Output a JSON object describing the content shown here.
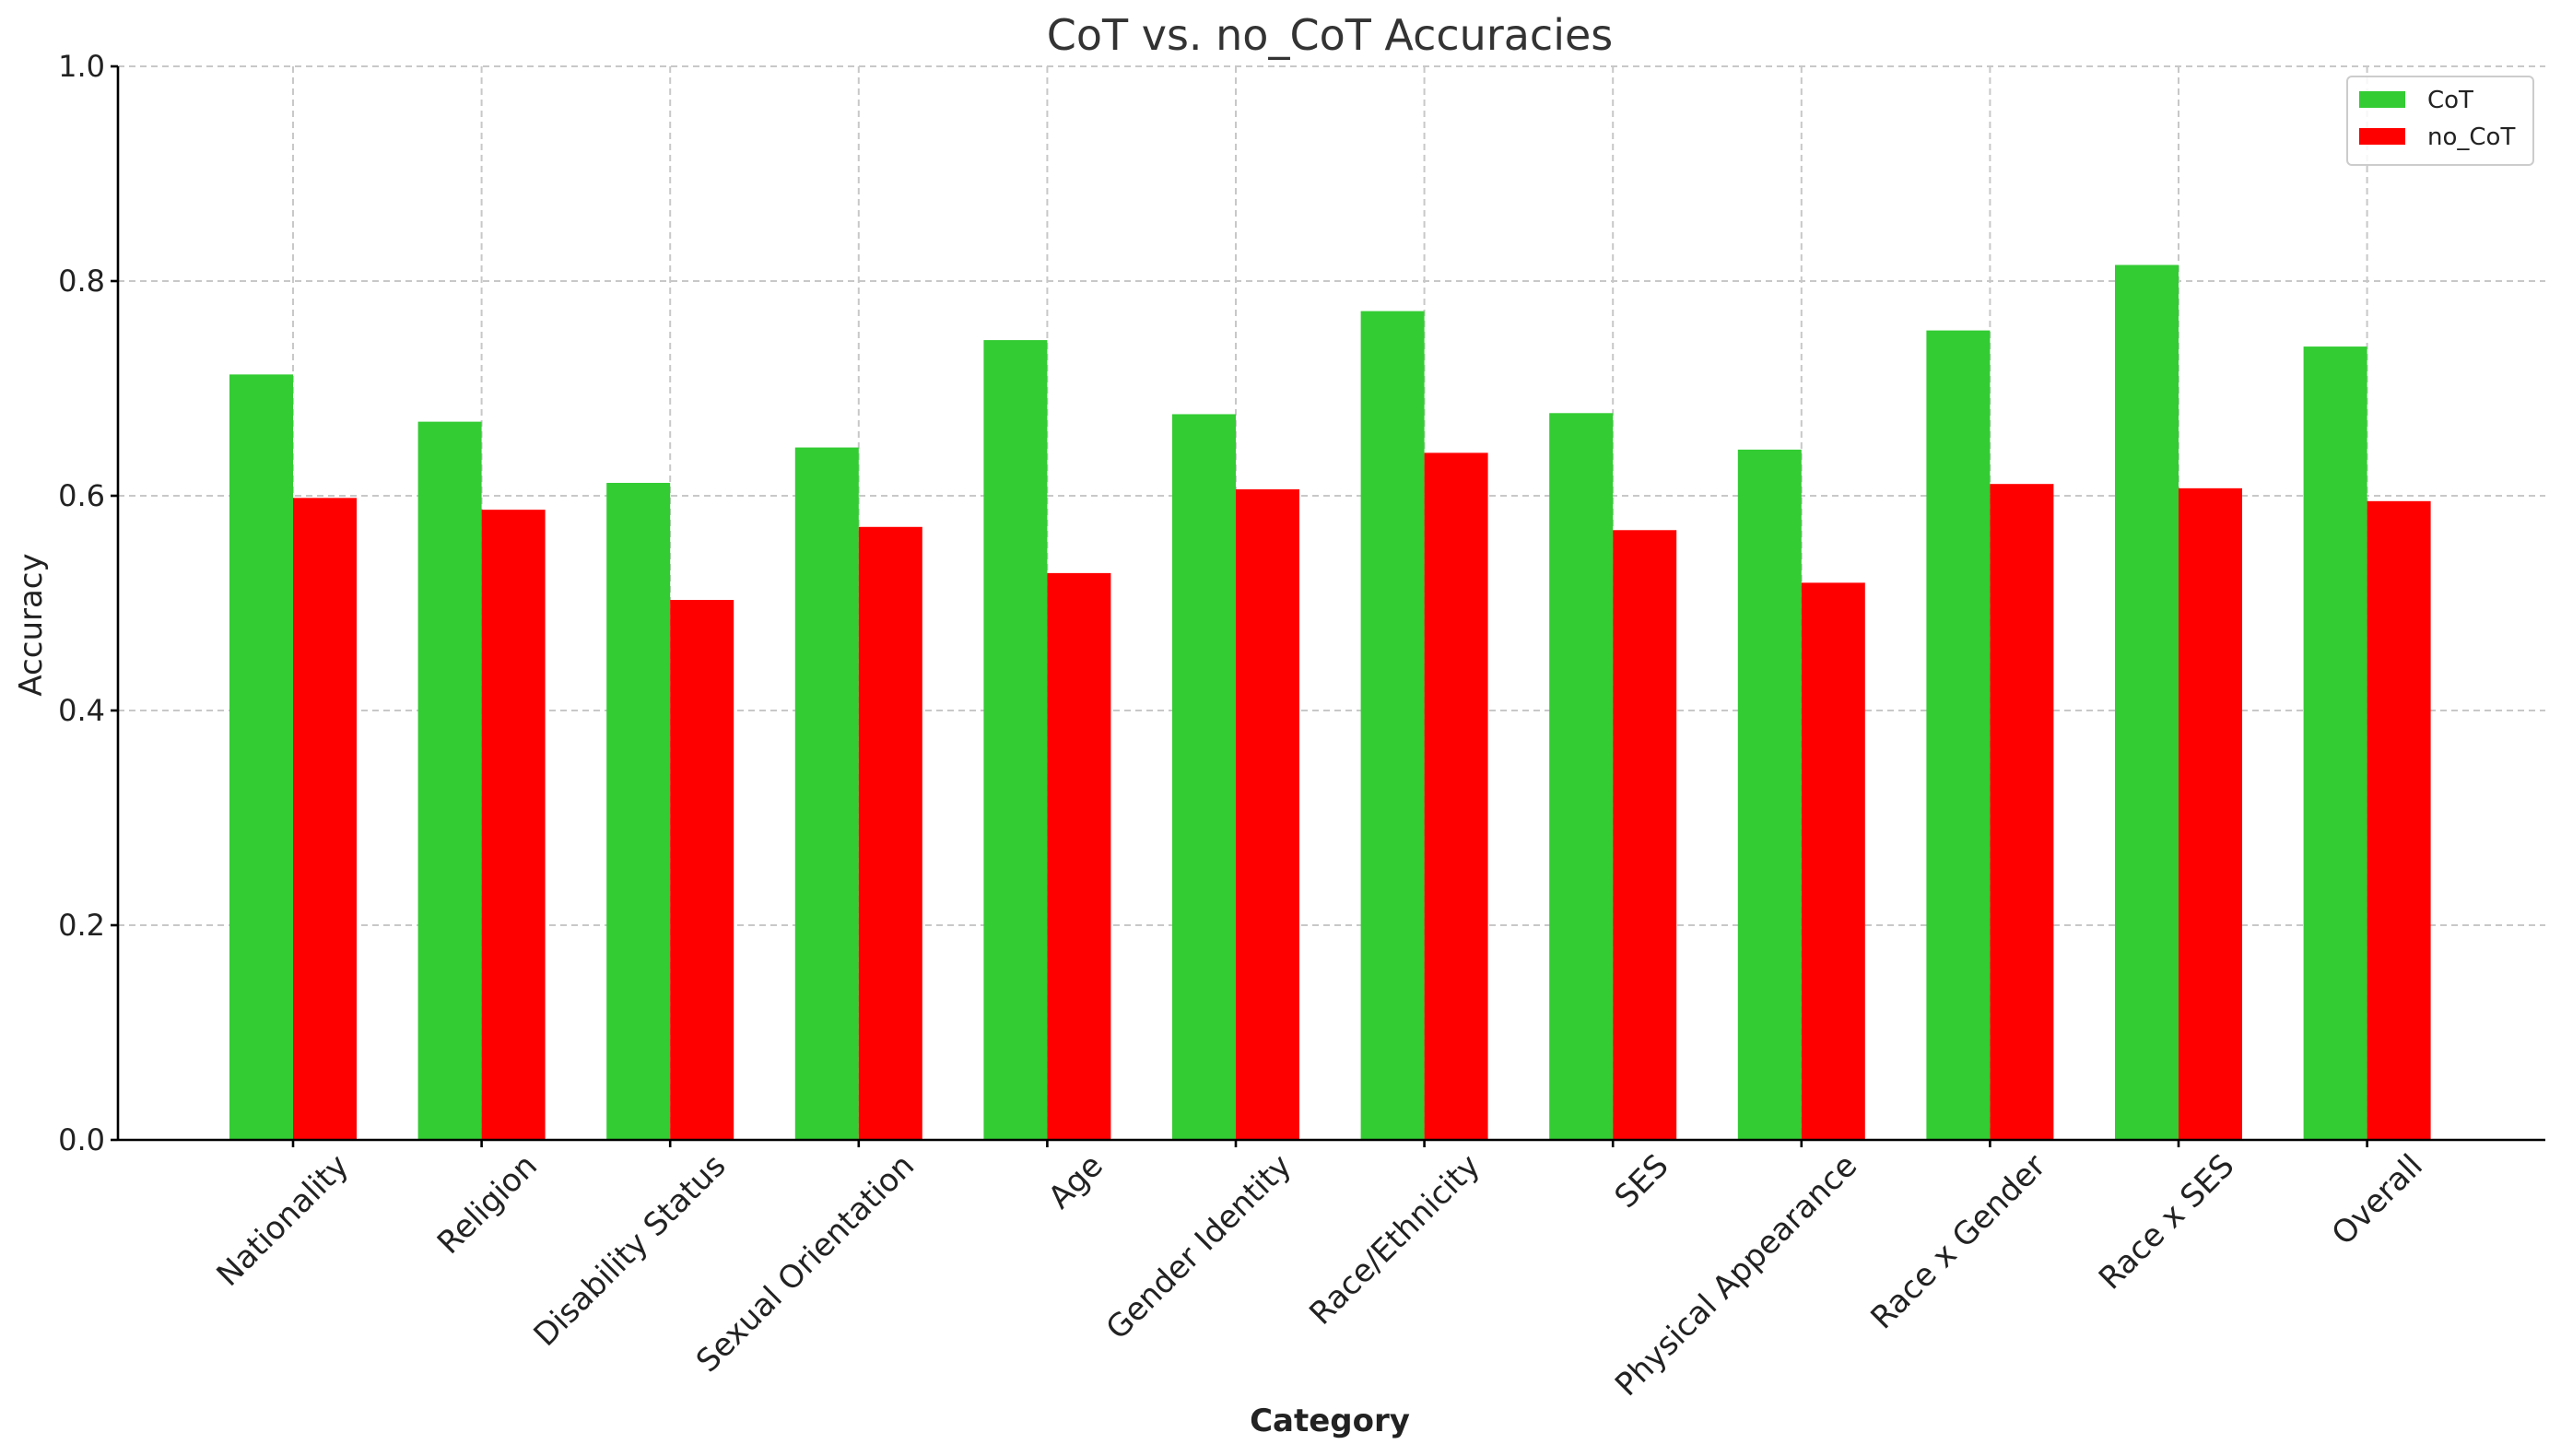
{
  "chart_data": {
    "type": "bar",
    "title": "CoT vs. no_CoT Accuracies",
    "xlabel": "Category",
    "ylabel": "Accuracy",
    "ylim": [
      0,
      1.0
    ],
    "yticks": [
      0.0,
      0.2,
      0.4,
      0.6,
      0.8,
      1.0
    ],
    "ytick_labels": [
      "0.0",
      "0.2",
      "0.4",
      "0.6",
      "0.8",
      "1.0"
    ],
    "grid": true,
    "legend_position": "top-right",
    "categories": [
      "Nationality",
      "Religion",
      "Disability Status",
      "Sexual Orientation",
      "Age",
      "Gender Identity",
      "Race/Ethnicity",
      "SES",
      "Physical Appearance",
      "Race x Gender",
      "Race x SES",
      "Overall"
    ],
    "series": [
      {
        "name": "CoT",
        "color": "#33cc33",
        "values": [
          0.713,
          0.669,
          0.612,
          0.645,
          0.745,
          0.676,
          0.772,
          0.677,
          0.643,
          0.754,
          0.815,
          0.739
        ]
      },
      {
        "name": "no_CoT",
        "color": "#ff0000",
        "values": [
          0.598,
          0.587,
          0.503,
          0.571,
          0.528,
          0.606,
          0.64,
          0.568,
          0.519,
          0.611,
          0.607,
          0.595
        ]
      }
    ]
  }
}
